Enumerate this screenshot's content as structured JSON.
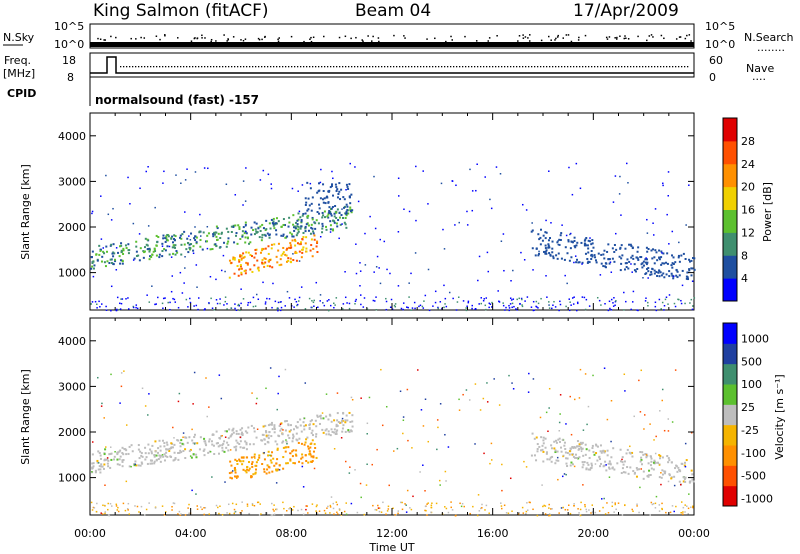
{
  "header": {
    "station": "King Salmon (fitACF)",
    "beam": "Beam 04",
    "date": "17/Apr/2009"
  },
  "side_labels": {
    "nsky": "N.Sky",
    "nsearch": "N.Search",
    "nsearch_dots": "........",
    "freq": "Freq.",
    "freq_unit": "[MHz]",
    "nave": "Nave",
    "nave_dots": "....",
    "cpid": "CPID"
  },
  "panel_ticks": {
    "nsky_left": [
      "10^5",
      "10^0"
    ],
    "nsky_right": [
      "10^5",
      "10^0"
    ],
    "freq_left": [
      "18",
      "8"
    ],
    "nave_right": [
      "60",
      "0"
    ]
  },
  "program": "normalsound (fast) -157",
  "colors": {
    "power": [
      "#0000ff",
      "#1f4fa0",
      "#3f8f6f",
      "#5cc02f",
      "#f0d000",
      "#ff9000",
      "#ff5000",
      "#e00000"
    ],
    "velocity": [
      "#e00000",
      "#ff5000",
      "#ff9000",
      "#f5b400",
      "#bdbdbd",
      "#5cc02f",
      "#3f8f6f",
      "#2040a0",
      "#0000ff"
    ]
  },
  "chart_data": [
    {
      "type": "heatmap",
      "name": "Power",
      "ylabel": "Slant Range [km]",
      "colorbar_label": "Power [dB]",
      "colorbar_ticks": [
        "28",
        "24",
        "20",
        "16",
        "12",
        "8",
        "4"
      ],
      "xlim": [
        "00:00",
        "24:00"
      ],
      "ylim": [
        180,
        4500
      ],
      "yticks": [
        "4000",
        "3000",
        "2000",
        "1000"
      ],
      "x_tick_labels": [
        "00:00",
        "04:00",
        "08:00",
        "12:00",
        "16:00",
        "20:00",
        "00:00"
      ],
      "xlabel": "Time UT",
      "echo_regions": [
        {
          "t_start": 0.0,
          "t_end": 10.4,
          "range_km": [
            1100,
            2400
          ],
          "power_db": [
            4,
            16
          ]
        },
        {
          "t_start": 5.5,
          "t_end": 9.0,
          "range_km": [
            900,
            1600
          ],
          "power_db": [
            16,
            28
          ]
        },
        {
          "t_start": 8.5,
          "t_end": 10.4,
          "range_km": [
            2300,
            3000
          ],
          "power_db": [
            4,
            8
          ]
        },
        {
          "t_start": 17.5,
          "t_end": 24.0,
          "range_km": [
            1000,
            2000
          ],
          "power_db": [
            4,
            8
          ]
        }
      ]
    },
    {
      "type": "heatmap",
      "name": "Velocity",
      "ylabel": "Slant Range [km]",
      "colorbar_label": "Velocity [m s⁻¹]",
      "colorbar_ticks": [
        "1000",
        "500",
        "100",
        "25",
        "-25",
        "-100",
        "-500",
        "-1000"
      ],
      "xlim": [
        "00:00",
        "24:00"
      ],
      "ylim": [
        180,
        4500
      ],
      "yticks": [
        "4000",
        "3000",
        "2000",
        "1000"
      ],
      "x_tick_labels": [
        "00:00",
        "04:00",
        "08:00",
        "12:00",
        "16:00",
        "20:00",
        "00:00"
      ],
      "xlabel": "Time UT",
      "echo_regions": [
        {
          "t_start": 0.0,
          "t_end": 10.4,
          "range_km": [
            1100,
            2400
          ],
          "velocity_ms": [
            -25,
            25
          ]
        },
        {
          "t_start": 5.5,
          "t_end": 9.0,
          "range_km": [
            900,
            1600
          ],
          "velocity_ms": [
            -500,
            -100
          ]
        },
        {
          "t_start": 17.5,
          "t_end": 24.0,
          "range_km": [
            1000,
            2000
          ],
          "velocity_ms": [
            -25,
            25
          ]
        }
      ]
    }
  ]
}
